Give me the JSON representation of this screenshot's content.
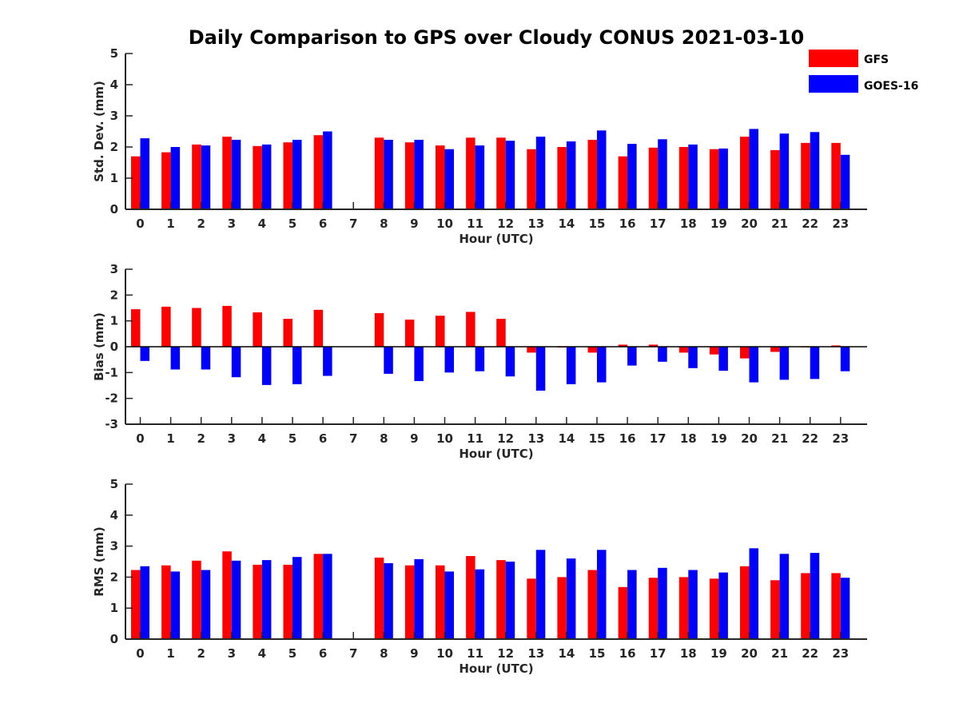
{
  "chart_data": {
    "title": "Daily Comparison to GPS over Cloudy CONUS 2021-03-10",
    "type": "bar",
    "legend": {
      "placement": "top-right",
      "entries": [
        {
          "name": "GFS",
          "color": "#ff0000"
        },
        {
          "name": "GOES-16",
          "color": "#0000ff"
        }
      ]
    },
    "panels": [
      {
        "ylabel": "Std. Dev. (mm)",
        "xlabel": "Hour (UTC)",
        "ylim": [
          0,
          5
        ],
        "yticks": [
          0,
          1,
          2,
          3,
          4,
          5
        ],
        "xticks": [
          0,
          1,
          2,
          3,
          4,
          5,
          6,
          7,
          8,
          9,
          10,
          11,
          12,
          13,
          14,
          15,
          16,
          17,
          18,
          19,
          20,
          21,
          22,
          23
        ],
        "series": [
          {
            "name": "GFS",
            "color": "#ff0000",
            "values": [
              1.7,
              1.83,
              2.08,
              2.33,
              2.03,
              2.15,
              2.38,
              null,
              2.3,
              2.15,
              2.05,
              2.3,
              2.3,
              1.93,
              2.0,
              2.23,
              1.7,
              1.98,
              2.0,
              1.93,
              2.33,
              1.9,
              2.13,
              2.13
            ]
          },
          {
            "name": "GOES-16",
            "color": "#0000ff",
            "values": [
              2.28,
              2.0,
              2.05,
              2.23,
              2.08,
              2.23,
              2.5,
              null,
              2.23,
              2.23,
              1.93,
              2.05,
              2.2,
              2.33,
              2.18,
              2.53,
              2.1,
              2.25,
              2.08,
              1.95,
              2.58,
              2.43,
              2.48,
              1.75
            ]
          }
        ]
      },
      {
        "ylabel": "Bias (mm)",
        "xlabel": "Hour (UTC)",
        "ylim": [
          -3,
          3
        ],
        "yticks": [
          -3,
          -2,
          -1,
          0,
          1,
          2,
          3
        ],
        "xticks": [
          0,
          1,
          2,
          3,
          4,
          5,
          6,
          7,
          8,
          9,
          10,
          11,
          12,
          13,
          14,
          15,
          16,
          17,
          18,
          19,
          20,
          21,
          22,
          23
        ],
        "series": [
          {
            "name": "GFS",
            "color": "#ff0000",
            "values": [
              1.45,
              1.55,
              1.5,
              1.58,
              1.33,
              1.08,
              1.43,
              null,
              1.3,
              1.05,
              1.2,
              1.35,
              1.08,
              -0.23,
              -0.03,
              -0.23,
              0.08,
              0.08,
              -0.23,
              -0.3,
              -0.45,
              -0.2,
              0.0,
              0.05
            ]
          },
          {
            "name": "GOES-16",
            "color": "#0000ff",
            "values": [
              -0.55,
              -0.88,
              -0.88,
              -1.18,
              -1.48,
              -1.45,
              -1.13,
              null,
              -1.05,
              -1.33,
              -1.0,
              -0.95,
              -1.15,
              -1.7,
              -1.45,
              -1.38,
              -0.73,
              -0.58,
              -0.83,
              -0.93,
              -1.38,
              -1.28,
              -1.25,
              -0.95
            ]
          }
        ]
      },
      {
        "ylabel": "RMS (mm)",
        "xlabel": "Hour (UTC)",
        "ylim": [
          0,
          5
        ],
        "yticks": [
          0,
          1,
          2,
          3,
          4,
          5
        ],
        "xticks": [
          0,
          1,
          2,
          3,
          4,
          5,
          6,
          7,
          8,
          9,
          10,
          11,
          12,
          13,
          14,
          15,
          16,
          17,
          18,
          19,
          20,
          21,
          22,
          23
        ],
        "series": [
          {
            "name": "GFS",
            "color": "#ff0000",
            "values": [
              2.23,
              2.38,
              2.53,
              2.83,
              2.4,
              2.4,
              2.75,
              null,
              2.63,
              2.38,
              2.38,
              2.68,
              2.55,
              1.95,
              2.0,
              2.23,
              1.68,
              1.98,
              2.0,
              1.95,
              2.35,
              1.9,
              2.13,
              2.13
            ]
          },
          {
            "name": "GOES-16",
            "color": "#0000ff",
            "values": [
              2.35,
              2.18,
              2.23,
              2.53,
              2.55,
              2.65,
              2.75,
              null,
              2.45,
              2.58,
              2.18,
              2.25,
              2.5,
              2.88,
              2.6,
              2.88,
              2.23,
              2.3,
              2.23,
              2.15,
              2.93,
              2.75,
              2.78,
              1.98
            ]
          }
        ]
      }
    ]
  }
}
